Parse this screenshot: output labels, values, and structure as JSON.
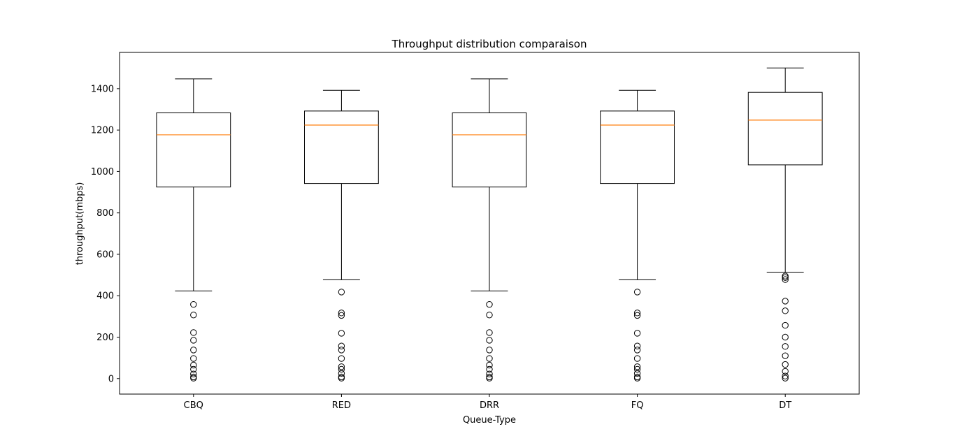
{
  "chart_data": {
    "type": "box",
    "title": "Throughput distribution comparaison",
    "xlabel": "Queue-Type",
    "ylabel": "throughput(mbps)",
    "ylim": [
      -75,
      1575
    ],
    "yticks": [
      0,
      200,
      400,
      600,
      800,
      1000,
      1200,
      1400
    ],
    "grid": false,
    "colors": {
      "box": "#000000",
      "median": "#ff7f0e",
      "background": "#ffffff"
    },
    "categories": [
      "CBQ",
      "RED",
      "DRR",
      "FQ",
      "DT"
    ],
    "series": [
      {
        "category": "CBQ",
        "whisker_low": 423,
        "q1": 925,
        "median": 1177,
        "q3": 1283,
        "whisker_high": 1447,
        "outliers": [
          358,
          307,
          222,
          185,
          138,
          97,
          65,
          45,
          22,
          8,
          2
        ]
      },
      {
        "category": "RED",
        "whisker_low": 477,
        "q1": 942,
        "median": 1224,
        "q3": 1292,
        "whisker_high": 1392,
        "outliers": [
          418,
          317,
          305,
          219,
          157,
          138,
          97,
          57,
          45,
          25,
          8,
          2
        ]
      },
      {
        "category": "DRR",
        "whisker_low": 423,
        "q1": 925,
        "median": 1177,
        "q3": 1283,
        "whisker_high": 1447,
        "outliers": [
          358,
          307,
          222,
          185,
          138,
          97,
          65,
          45,
          22,
          8,
          2
        ]
      },
      {
        "category": "FQ",
        "whisker_low": 477,
        "q1": 942,
        "median": 1224,
        "q3": 1292,
        "whisker_high": 1392,
        "outliers": [
          418,
          317,
          305,
          219,
          157,
          138,
          97,
          57,
          45,
          25,
          8,
          2
        ]
      },
      {
        "category": "DT",
        "whisker_low": 514,
        "q1": 1032,
        "median": 1248,
        "q3": 1382,
        "whisker_high": 1500,
        "outliers": [
          495,
          488,
          478,
          374,
          327,
          257,
          200,
          155,
          110,
          68,
          35,
          12,
          2
        ]
      }
    ]
  }
}
